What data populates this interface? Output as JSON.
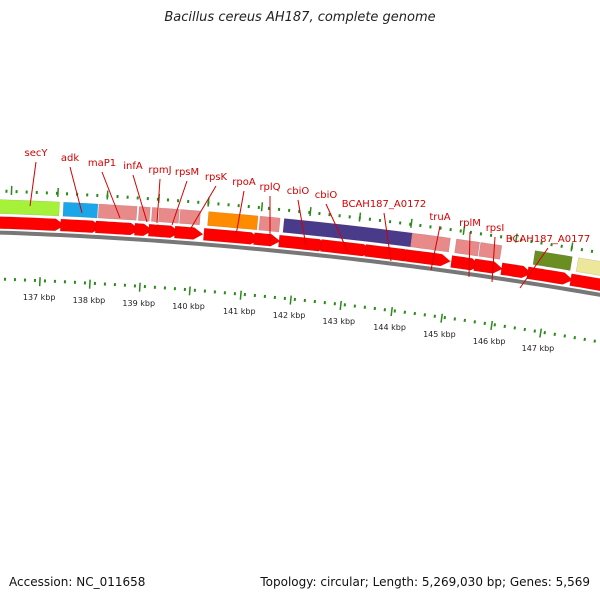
{
  "title": "Bacillus cereus AH187, complete genome",
  "footer": {
    "accession": "Accession: NC_011658",
    "summary": "Topology: circular; Length: 5,269,030 bp; Genes: 5,569"
  },
  "colors": {
    "gene_label": "#d40000",
    "cds": "#ff0000",
    "backbone": "#777777",
    "tick": "#2a8a1a",
    "lime": "#a6f23a",
    "cyan": "#1aa6e8",
    "pink": "#e88a8a",
    "orange": "#ff8c00",
    "purple": "#4a3a8a",
    "olive": "#6b8e23",
    "yellow": "#ece79a"
  },
  "gene_labels": [
    "secY",
    "adk",
    "maP1",
    "infA",
    "rpmJ",
    "rpsM",
    "rpsK",
    "rpoA",
    "rplQ",
    "cbiO",
    "cbiO",
    "BCAH187_A0172",
    "truA",
    "rplM",
    "rpsI",
    "BCAH187_A0177"
  ],
  "tick_labels": [
    "137 kbp",
    "138 kbp",
    "139 kbp",
    "140 kbp",
    "141 kbp",
    "142 kbp",
    "143 kbp",
    "144 kbp",
    "145 kbp",
    "146 kbp",
    "147 kbp"
  ]
}
